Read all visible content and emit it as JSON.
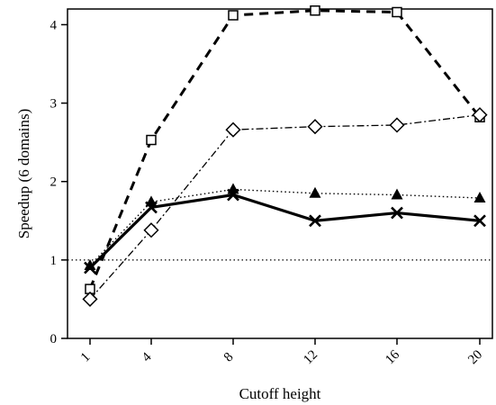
{
  "chart_data": {
    "type": "line",
    "xlabel": "Cutoff height",
    "ylabel": "Speedup (6 domains)",
    "x": [
      1,
      4,
      8,
      12,
      16,
      20
    ],
    "x_tick_labels": [
      "1",
      "4",
      "8",
      "12",
      "16",
      "20"
    ],
    "x_scale": "categorical-ish (uneven spacing: 1, 4, 8, 12, 16, 20)",
    "ylim": [
      0,
      4.2
    ],
    "y_ticks": [
      0,
      1,
      2,
      3,
      4
    ],
    "y_tick_labels": [
      "0",
      "1",
      "2",
      "3",
      "4"
    ],
    "grid": false,
    "legend": "none",
    "reference_line": {
      "y": 1,
      "style": "dotted"
    },
    "series": [
      {
        "style": "dashed-bold",
        "marker": "square-open",
        "color": "#000000",
        "values": [
          0.63,
          2.53,
          4.12,
          4.18,
          4.16,
          2.82
        ]
      },
      {
        "style": "dashdot",
        "marker": "diamond-open",
        "color": "#000000",
        "values": [
          0.5,
          1.38,
          2.66,
          2.7,
          2.72,
          2.85
        ]
      },
      {
        "style": "dotted",
        "marker": "triangle-filled",
        "color": "#000000",
        "values": [
          0.93,
          1.74,
          1.9,
          1.85,
          1.83,
          1.79
        ]
      },
      {
        "style": "solid-bold",
        "marker": "x",
        "color": "#000000",
        "values": [
          0.9,
          1.67,
          1.83,
          1.5,
          1.6,
          1.5
        ]
      }
    ]
  }
}
